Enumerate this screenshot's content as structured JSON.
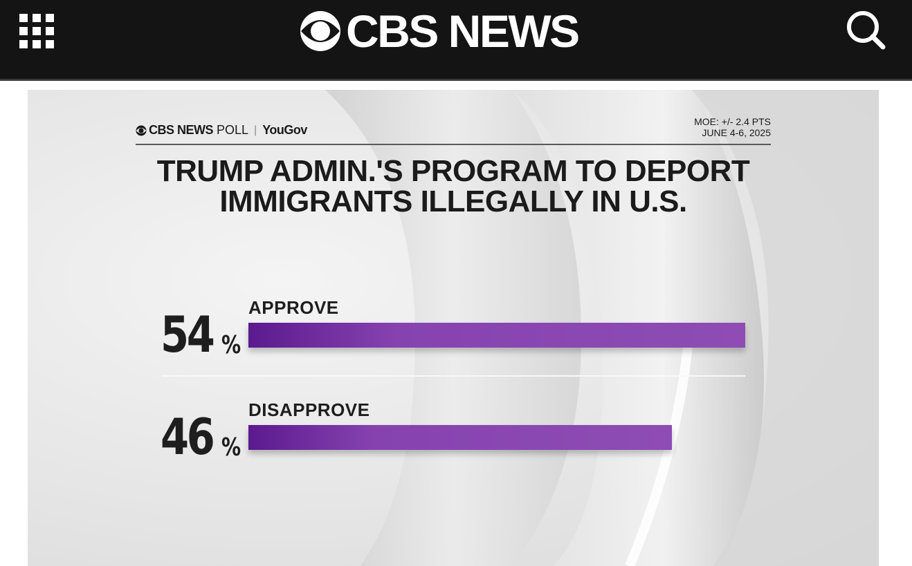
{
  "header": {
    "menu_icon": "grid-menu-icon",
    "logo_text": "CBS NEWS",
    "search_icon": "search-icon",
    "background": "#141414"
  },
  "graphic": {
    "brand": {
      "cbs": "CBS NEWS",
      "poll": "POLL",
      "partner": "YouGov"
    },
    "moe": "MOE: +/- 2.4 PTS",
    "dates": "JUNE 4-6, 2025",
    "title_line1": "TRUMP ADMIN.'S PROGRAM TO DEPORT",
    "title_line2": "IMMIGRANTS ILLEGALLY IN U.S."
  },
  "chart_data": {
    "type": "bar",
    "orientation": "horizontal",
    "title": "TRUMP ADMIN.'S PROGRAM TO DEPORT IMMIGRANTS ILLEGALLY IN U.S.",
    "categories": [
      "APPROVE",
      "DISAPPROVE"
    ],
    "values": [
      54,
      46
    ],
    "value_labels": [
      "54",
      "46"
    ],
    "unit": "%",
    "max": 54,
    "bar_color": "#8a48b2",
    "xlabel": "",
    "ylabel": ""
  }
}
